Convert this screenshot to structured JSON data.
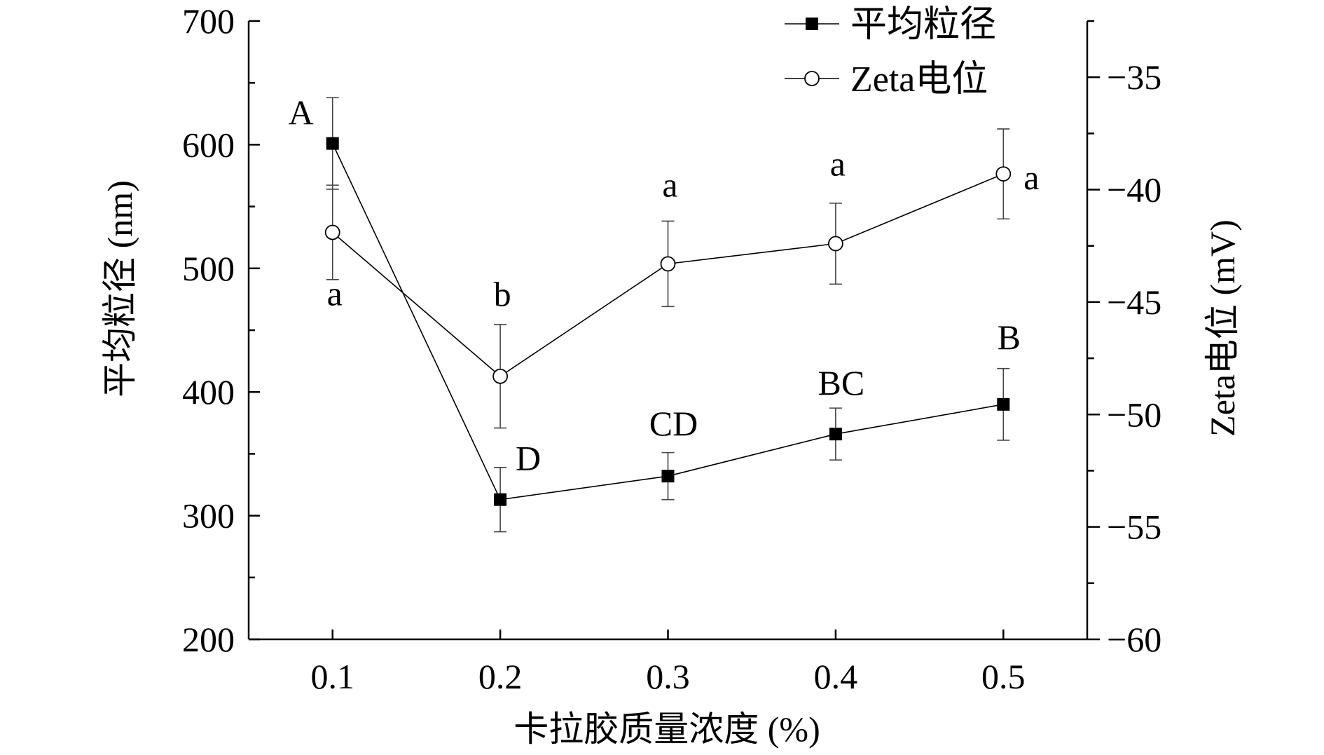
{
  "chart_data": {
    "type": "line",
    "x": [
      0.1,
      0.2,
      0.3,
      0.4,
      0.5
    ],
    "x_tick_labels": [
      "0.1",
      "0.2",
      "0.3",
      "0.4",
      "0.5"
    ],
    "xlabel": "卡拉胶质量浓度 (%)",
    "ylabel_left": "平均粒径 (nm)",
    "ylabel_right": "Zeta电位 (mV)",
    "xlim": [
      0.05,
      0.55
    ],
    "ylim_left": [
      200,
      700
    ],
    "ylim_right": [
      -60,
      -32.5
    ],
    "y_left_ticks": [
      200,
      300,
      400,
      500,
      600,
      700
    ],
    "y_left_tick_labels": [
      "200",
      "300",
      "400",
      "500",
      "600",
      "700"
    ],
    "y_right_ticks": [
      -60,
      -55,
      -50,
      -45,
      -40,
      -35
    ],
    "y_right_tick_labels": [
      "−60",
      "−55",
      "−50",
      "−45",
      "−40",
      "−35"
    ],
    "legend_position": "top-right",
    "grid": false,
    "series": [
      {
        "name": "平均粒径",
        "axis": "left",
        "marker": "filled-square",
        "values": [
          601,
          313,
          332,
          366,
          390
        ],
        "errors": [
          37,
          26,
          19,
          21,
          29
        ],
        "significance_labels": [
          "A",
          "D",
          "CD",
          "BC",
          "B"
        ]
      },
      {
        "name": "Zeta电位",
        "axis": "right",
        "marker": "open-circle",
        "values": [
          -41.9,
          -48.3,
          -43.3,
          -42.4,
          -39.3
        ],
        "errors": [
          2.1,
          2.3,
          1.9,
          1.8,
          2.0
        ],
        "significance_labels": [
          "a",
          "b",
          "a",
          "a",
          "a"
        ]
      }
    ]
  }
}
